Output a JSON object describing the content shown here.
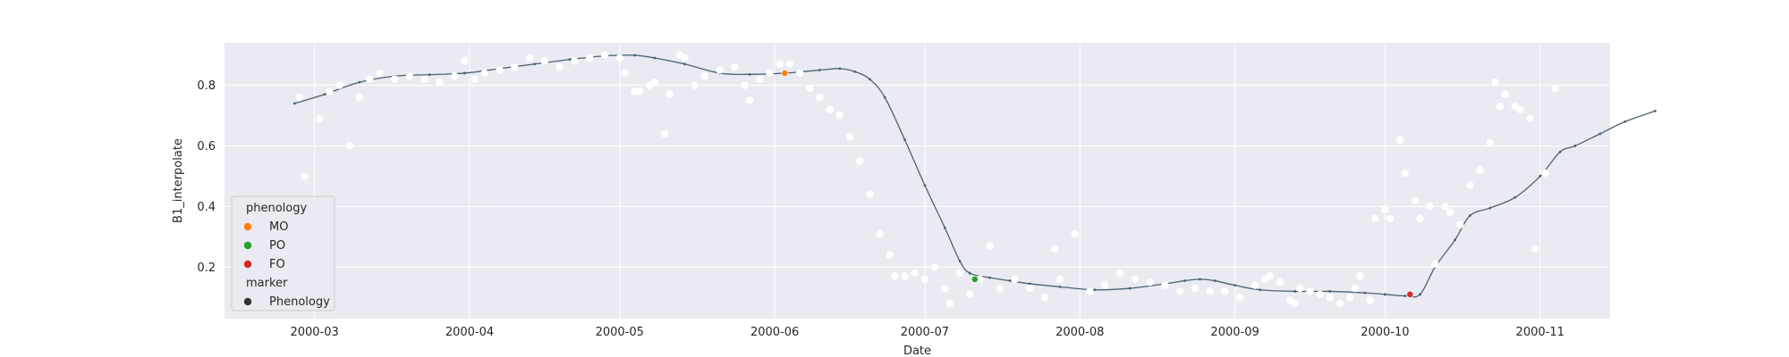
{
  "chart_data": {
    "type": "scatter",
    "xlabel": "Date",
    "ylabel": "B1_interpolate",
    "xlim": [
      "2000-02-12",
      "2000-11-15"
    ],
    "ylim": [
      0.03,
      0.94
    ],
    "grid": true,
    "background": "#eaeaf2",
    "x_ticks": [
      "2000-03-01",
      "2000-04-01",
      "2000-05-01",
      "2000-06-01",
      "2000-07-01",
      "2000-08-01",
      "2000-09-01",
      "2000-10-01",
      "2000-11-01"
    ],
    "x_tick_labels": [
      "2000-03",
      "2000-04",
      "2000-05",
      "2000-06",
      "2000-07",
      "2000-08",
      "2000-09",
      "2000-10",
      "2000-11"
    ],
    "y_ticks": [
      0.2,
      0.4,
      0.6,
      0.8
    ],
    "y_tick_labels": [
      "0.2",
      "0.4",
      "0.6",
      "0.8"
    ],
    "observations": {
      "color": "#ffffff",
      "points": [
        [
          "2000-02-27",
          0.76
        ],
        [
          "2000-02-28",
          0.5
        ],
        [
          "2000-03-02",
          0.69
        ],
        [
          "2000-03-04",
          0.78
        ],
        [
          "2000-03-06",
          0.8
        ],
        [
          "2000-03-08",
          0.6
        ],
        [
          "2000-03-10",
          0.76
        ],
        [
          "2000-03-12",
          0.82
        ],
        [
          "2000-03-14",
          0.84
        ],
        [
          "2000-03-17",
          0.82
        ],
        [
          "2000-03-20",
          0.83
        ],
        [
          "2000-03-23",
          0.82
        ],
        [
          "2000-03-26",
          0.81
        ],
        [
          "2000-03-29",
          0.83
        ],
        [
          "2000-03-31",
          0.88
        ],
        [
          "2000-04-02",
          0.82
        ],
        [
          "2000-04-04",
          0.84
        ],
        [
          "2000-04-07",
          0.85
        ],
        [
          "2000-04-10",
          0.86
        ],
        [
          "2000-04-13",
          0.89
        ],
        [
          "2000-04-16",
          0.88
        ],
        [
          "2000-04-19",
          0.86
        ],
        [
          "2000-04-22",
          0.88
        ],
        [
          "2000-04-25",
          0.89
        ],
        [
          "2000-04-28",
          0.9
        ],
        [
          "2000-05-01",
          0.89
        ],
        [
          "2000-05-02",
          0.84
        ],
        [
          "2000-05-04",
          0.78
        ],
        [
          "2000-05-05",
          0.78
        ],
        [
          "2000-05-07",
          0.8
        ],
        [
          "2000-05-08",
          0.81
        ],
        [
          "2000-05-10",
          0.64
        ],
        [
          "2000-05-11",
          0.77
        ],
        [
          "2000-05-13",
          0.9
        ],
        [
          "2000-05-14",
          0.89
        ],
        [
          "2000-05-16",
          0.8
        ],
        [
          "2000-05-18",
          0.83
        ],
        [
          "2000-05-21",
          0.85
        ],
        [
          "2000-05-24",
          0.86
        ],
        [
          "2000-05-26",
          0.8
        ],
        [
          "2000-05-27",
          0.75
        ],
        [
          "2000-05-29",
          0.82
        ],
        [
          "2000-05-31",
          0.84
        ],
        [
          "2000-06-02",
          0.87
        ],
        [
          "2000-06-04",
          0.87
        ],
        [
          "2000-06-06",
          0.84
        ],
        [
          "2000-06-08",
          0.79
        ],
        [
          "2000-06-10",
          0.76
        ],
        [
          "2000-06-12",
          0.72
        ],
        [
          "2000-06-14",
          0.7
        ],
        [
          "2000-06-16",
          0.63
        ],
        [
          "2000-06-18",
          0.55
        ],
        [
          "2000-06-20",
          0.44
        ],
        [
          "2000-06-22",
          0.31
        ],
        [
          "2000-06-24",
          0.24
        ],
        [
          "2000-06-25",
          0.17
        ],
        [
          "2000-06-27",
          0.17
        ],
        [
          "2000-06-29",
          0.18
        ],
        [
          "2000-07-01",
          0.16
        ],
        [
          "2000-07-03",
          0.2
        ],
        [
          "2000-07-05",
          0.13
        ],
        [
          "2000-07-06",
          0.08
        ],
        [
          "2000-07-08",
          0.18
        ],
        [
          "2000-07-10",
          0.11
        ],
        [
          "2000-07-12",
          0.16
        ],
        [
          "2000-07-14",
          0.27
        ],
        [
          "2000-07-16",
          0.13
        ],
        [
          "2000-07-19",
          0.16
        ],
        [
          "2000-07-22",
          0.13
        ],
        [
          "2000-07-25",
          0.1
        ],
        [
          "2000-07-27",
          0.26
        ],
        [
          "2000-07-28",
          0.16
        ],
        [
          "2000-07-31",
          0.31
        ],
        [
          "2000-08-03",
          0.12
        ],
        [
          "2000-08-06",
          0.14
        ],
        [
          "2000-08-09",
          0.18
        ],
        [
          "2000-08-12",
          0.16
        ],
        [
          "2000-08-15",
          0.15
        ],
        [
          "2000-08-18",
          0.14
        ],
        [
          "2000-08-21",
          0.12
        ],
        [
          "2000-08-24",
          0.13
        ],
        [
          "2000-08-27",
          0.12
        ],
        [
          "2000-08-30",
          0.12
        ],
        [
          "2000-09-02",
          0.1
        ],
        [
          "2000-09-05",
          0.14
        ],
        [
          "2000-09-07",
          0.16
        ],
        [
          "2000-09-08",
          0.17
        ],
        [
          "2000-09-10",
          0.15
        ],
        [
          "2000-09-12",
          0.09
        ],
        [
          "2000-09-13",
          0.08
        ],
        [
          "2000-09-14",
          0.13
        ],
        [
          "2000-09-16",
          0.12
        ],
        [
          "2000-09-18",
          0.11
        ],
        [
          "2000-09-20",
          0.1
        ],
        [
          "2000-09-22",
          0.08
        ],
        [
          "2000-09-24",
          0.1
        ],
        [
          "2000-09-25",
          0.13
        ],
        [
          "2000-09-26",
          0.17
        ],
        [
          "2000-09-28",
          0.09
        ],
        [
          "2000-09-29",
          0.36
        ],
        [
          "2000-10-01",
          0.39
        ],
        [
          "2000-10-02",
          0.36
        ],
        [
          "2000-10-04",
          0.62
        ],
        [
          "2000-10-05",
          0.51
        ],
        [
          "2000-10-07",
          0.42
        ],
        [
          "2000-10-08",
          0.36
        ],
        [
          "2000-10-10",
          0.4
        ],
        [
          "2000-10-11",
          0.21
        ],
        [
          "2000-10-13",
          0.4
        ],
        [
          "2000-10-14",
          0.38
        ],
        [
          "2000-10-16",
          0.34
        ],
        [
          "2000-10-18",
          0.47
        ],
        [
          "2000-10-20",
          0.52
        ],
        [
          "2000-10-22",
          0.61
        ],
        [
          "2000-10-23",
          0.81
        ],
        [
          "2000-10-24",
          0.73
        ],
        [
          "2000-10-25",
          0.77
        ],
        [
          "2000-10-27",
          0.73
        ],
        [
          "2000-10-28",
          0.72
        ],
        [
          "2000-10-30",
          0.69
        ],
        [
          "2000-10-31",
          0.26
        ],
        [
          "2000-11-02",
          0.51
        ],
        [
          "2000-11-04",
          0.79
        ]
      ]
    },
    "interpolation": {
      "color": "#4a6272",
      "points": [
        [
          "2000-02-26",
          0.74
        ],
        [
          "2000-03-03",
          0.77
        ],
        [
          "2000-03-10",
          0.81
        ],
        [
          "2000-03-17",
          0.83
        ],
        [
          "2000-03-24",
          0.835
        ],
        [
          "2000-03-31",
          0.84
        ],
        [
          "2000-04-07",
          0.855
        ],
        [
          "2000-04-14",
          0.87
        ],
        [
          "2000-04-21",
          0.885
        ],
        [
          "2000-04-28",
          0.897
        ],
        [
          "2000-05-04",
          0.899
        ],
        [
          "2000-05-08",
          0.89
        ],
        [
          "2000-05-14",
          0.87
        ],
        [
          "2000-05-21",
          0.84
        ],
        [
          "2000-05-27",
          0.836
        ],
        [
          "2000-06-03",
          0.84
        ],
        [
          "2000-06-10",
          0.85
        ],
        [
          "2000-06-14",
          0.855
        ],
        [
          "2000-06-17",
          0.845
        ],
        [
          "2000-06-20",
          0.82
        ],
        [
          "2000-06-23",
          0.76
        ],
        [
          "2000-06-27",
          0.62
        ],
        [
          "2000-07-01",
          0.47
        ],
        [
          "2000-07-05",
          0.33
        ],
        [
          "2000-07-08",
          0.22
        ],
        [
          "2000-07-10",
          0.18
        ],
        [
          "2000-07-14",
          0.165
        ],
        [
          "2000-07-18",
          0.155
        ],
        [
          "2000-07-22",
          0.145
        ],
        [
          "2000-07-28",
          0.135
        ],
        [
          "2000-08-04",
          0.125
        ],
        [
          "2000-08-11",
          0.13
        ],
        [
          "2000-08-18",
          0.145
        ],
        [
          "2000-08-22",
          0.155
        ],
        [
          "2000-08-25",
          0.16
        ],
        [
          "2000-08-28",
          0.155
        ],
        [
          "2000-09-01",
          0.14
        ],
        [
          "2000-09-06",
          0.125
        ],
        [
          "2000-09-13",
          0.12
        ],
        [
          "2000-09-20",
          0.12
        ],
        [
          "2000-09-27",
          0.115
        ],
        [
          "2000-10-01",
          0.11
        ],
        [
          "2000-10-05",
          0.105
        ],
        [
          "2000-10-08",
          0.11
        ],
        [
          "2000-10-11",
          0.2
        ],
        [
          "2000-10-15",
          0.29
        ],
        [
          "2000-10-18",
          0.37
        ],
        [
          "2000-10-22",
          0.395
        ],
        [
          "2000-10-27",
          0.43
        ],
        [
          "2000-11-01",
          0.5
        ],
        [
          "2000-11-05",
          0.58
        ],
        [
          "2000-11-08",
          0.6
        ],
        [
          "2000-11-13",
          0.64
        ],
        [
          "2000-11-18",
          0.68
        ],
        [
          "2000-11-24",
          0.715
        ]
      ]
    },
    "phenology_points": [
      {
        "name": "MO",
        "x": "2000-06-03",
        "y": 0.84,
        "color": "#ff7f0e"
      },
      {
        "name": "PO",
        "x": "2000-07-11",
        "y": 0.16,
        "color": "#2ca02c"
      },
      {
        "name": "FO",
        "x": "2000-10-06",
        "y": 0.11,
        "color": "#d62728"
      }
    ],
    "legend": {
      "placement": "lower-left",
      "hue_title": "phenology",
      "hue_entries": [
        {
          "label": "MO",
          "color": "#ff7f0e"
        },
        {
          "label": "PO",
          "color": "#2ca02c"
        },
        {
          "label": "FO",
          "color": "#d62728"
        }
      ],
      "marker_title": "marker",
      "marker_entries": [
        {
          "label": "Phenology",
          "color": "#333333"
        }
      ]
    }
  }
}
